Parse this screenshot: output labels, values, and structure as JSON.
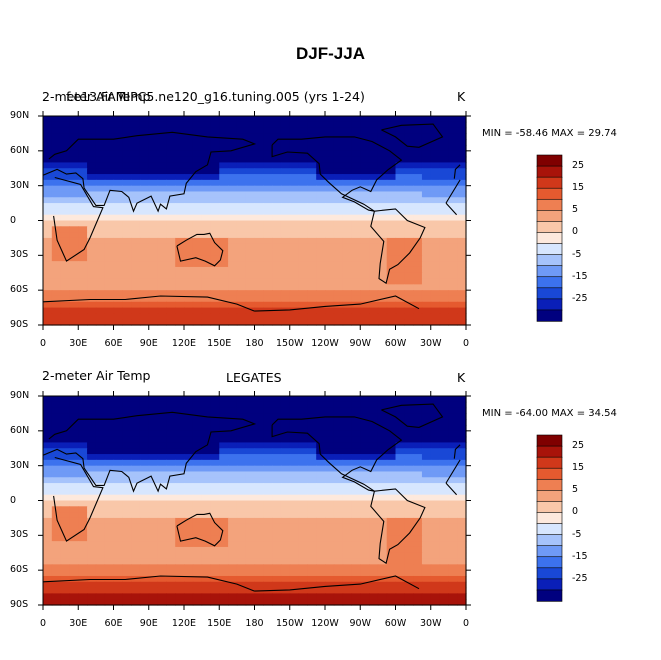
{
  "figure": {
    "title": "DJF-JJA"
  },
  "colors": {
    "levels": [
      "#00007f",
      "#0a1fb8",
      "#1948d6",
      "#3c72ee",
      "#6f9af6",
      "#a6c3fb",
      "#d7e6fe",
      "#fde9dd",
      "#f9c7a9",
      "#f3a37c",
      "#ee7f52",
      "#e55a2f",
      "#d0381a",
      "#a8130a",
      "#7f0000"
    ],
    "land": "none"
  },
  "colorbar": {
    "labels": [
      "25",
      "15",
      "5",
      "0",
      "-5",
      "-15",
      "-25"
    ]
  },
  "chart_data": [
    {
      "type": "heatmap",
      "id": "model",
      "left_label": "2-meter Air Temp",
      "center_label": "f.e13.FAMIPC5.ne120_g16.tuning.005 (yrs 1-24)",
      "units_label": "K",
      "stats": "MIN = -58.46  MAX =  29.74",
      "min": -58.46,
      "max": 29.74,
      "x_ticks": [
        "0",
        "30E",
        "60E",
        "90E",
        "120E",
        "150E",
        "180",
        "150W",
        "120W",
        "90W",
        "60W",
        "30W",
        "0"
      ],
      "y_ticks": [
        "90N",
        "60N",
        "30N",
        "0",
        "30S",
        "60S",
        "90S"
      ],
      "xlim": [
        0,
        360
      ],
      "ylim": [
        -90,
        90
      ]
    },
    {
      "type": "heatmap",
      "id": "obs",
      "left_label": "2-meter Air Temp",
      "center_label": "LEGATES",
      "units_label": "K",
      "stats": "MIN = -64.00  MAX =  34.54",
      "min": -64.0,
      "max": 34.54,
      "x_ticks": [
        "0",
        "30E",
        "60E",
        "90E",
        "120E",
        "150E",
        "180",
        "150W",
        "120W",
        "90W",
        "60W",
        "30W",
        "0"
      ],
      "y_ticks": [
        "90N",
        "60N",
        "30N",
        "0",
        "30S",
        "60S",
        "90S"
      ],
      "xlim": [
        0,
        360
      ],
      "ylim": [
        -90,
        90
      ]
    }
  ]
}
